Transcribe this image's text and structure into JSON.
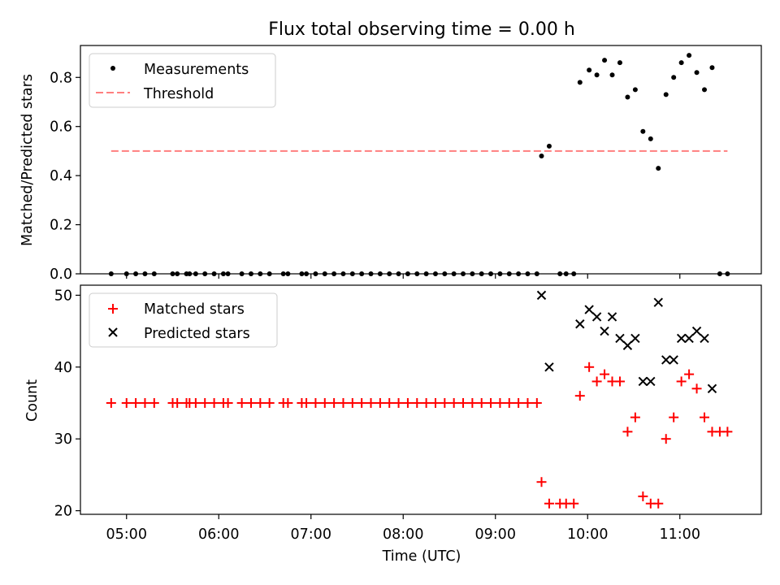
{
  "title": "Flux total observing time = 0.00 h",
  "xlabel": "Time (UTC)",
  "x_ticks": [
    "05:00",
    "06:00",
    "07:00",
    "08:00",
    "09:00",
    "10:00",
    "11:00"
  ],
  "colors": {
    "measurements": "#000000",
    "threshold": "#ff7f7f",
    "matched": "#ff0000",
    "predicted": "#000000"
  },
  "chart_data": [
    {
      "type": "scatter",
      "ylabel": "Matched/Predicted stars",
      "xlim": [
        "04:30",
        "11:53"
      ],
      "ylim": [
        0,
        0.93
      ],
      "y_ticks": [
        "0.0",
        "0.2",
        "0.4",
        "0.6",
        "0.8"
      ],
      "legend": "top-left",
      "series": [
        {
          "name": "Measurements",
          "marker": "dot",
          "points": [
            [
              "04:50",
              0.0
            ],
            [
              "05:00",
              0.0
            ],
            [
              "05:06",
              0.0
            ],
            [
              "05:12",
              0.0
            ],
            [
              "05:18",
              0.0
            ],
            [
              "05:30",
              0.0
            ],
            [
              "05:33",
              0.0
            ],
            [
              "05:39",
              0.0
            ],
            [
              "05:41",
              0.0
            ],
            [
              "05:45",
              0.0
            ],
            [
              "05:51",
              0.0
            ],
            [
              "05:57",
              0.0
            ],
            [
              "06:03",
              0.0
            ],
            [
              "06:06",
              0.0
            ],
            [
              "06:15",
              0.0
            ],
            [
              "06:21",
              0.0
            ],
            [
              "06:27",
              0.0
            ],
            [
              "06:33",
              0.0
            ],
            [
              "06:42",
              0.0
            ],
            [
              "06:45",
              0.0
            ],
            [
              "06:54",
              0.0
            ],
            [
              "06:57",
              0.0
            ],
            [
              "07:03",
              0.0
            ],
            [
              "07:09",
              0.0
            ],
            [
              "07:15",
              0.0
            ],
            [
              "07:21",
              0.0
            ],
            [
              "07:27",
              0.0
            ],
            [
              "07:33",
              0.0
            ],
            [
              "07:39",
              0.0
            ],
            [
              "07:45",
              0.0
            ],
            [
              "07:51",
              0.0
            ],
            [
              "07:57",
              0.0
            ],
            [
              "08:03",
              0.0
            ],
            [
              "08:09",
              0.0
            ],
            [
              "08:15",
              0.0
            ],
            [
              "08:21",
              0.0
            ],
            [
              "08:27",
              0.0
            ],
            [
              "08:33",
              0.0
            ],
            [
              "08:39",
              0.0
            ],
            [
              "08:45",
              0.0
            ],
            [
              "08:51",
              0.0
            ],
            [
              "08:57",
              0.0
            ],
            [
              "09:03",
              0.0
            ],
            [
              "09:09",
              0.0
            ],
            [
              "09:15",
              0.0
            ],
            [
              "09:21",
              0.0
            ],
            [
              "09:27",
              0.0
            ],
            [
              "09:30",
              0.48
            ],
            [
              "09:35",
              0.52
            ],
            [
              "09:42",
              0.0
            ],
            [
              "09:46",
              0.0
            ],
            [
              "09:51",
              0.0
            ],
            [
              "09:55",
              0.78
            ],
            [
              "10:01",
              0.83
            ],
            [
              "10:06",
              0.81
            ],
            [
              "10:11",
              0.87
            ],
            [
              "10:16",
              0.81
            ],
            [
              "10:21",
              0.86
            ],
            [
              "10:26",
              0.72
            ],
            [
              "10:31",
              0.75
            ],
            [
              "10:36",
              0.58
            ],
            [
              "10:41",
              0.55
            ],
            [
              "10:46",
              0.43
            ],
            [
              "10:51",
              0.73
            ],
            [
              "10:56",
              0.8
            ],
            [
              "11:01",
              0.86
            ],
            [
              "11:06",
              0.89
            ],
            [
              "11:11",
              0.82
            ],
            [
              "11:16",
              0.75
            ],
            [
              "11:21",
              0.84
            ],
            [
              "11:26",
              0.0
            ],
            [
              "11:31",
              0.0
            ]
          ]
        },
        {
          "name": "Threshold",
          "marker": "dashed-line",
          "points": [
            [
              "04:50",
              0.5
            ],
            [
              "11:31",
              0.5
            ]
          ]
        }
      ]
    },
    {
      "type": "scatter",
      "ylabel": "Count",
      "xlim": [
        "04:30",
        "11:53"
      ],
      "ylim": [
        19.5,
        51.4
      ],
      "y_ticks": [
        "20",
        "30",
        "40",
        "50"
      ],
      "legend": "top-left",
      "series": [
        {
          "name": "Matched stars",
          "marker": "plus",
          "points": [
            [
              "04:50",
              35
            ],
            [
              "05:00",
              35
            ],
            [
              "05:06",
              35
            ],
            [
              "05:12",
              35
            ],
            [
              "05:18",
              35
            ],
            [
              "05:30",
              35
            ],
            [
              "05:33",
              35
            ],
            [
              "05:39",
              35
            ],
            [
              "05:41",
              35
            ],
            [
              "05:45",
              35
            ],
            [
              "05:51",
              35
            ],
            [
              "05:57",
              35
            ],
            [
              "06:03",
              35
            ],
            [
              "06:06",
              35
            ],
            [
              "06:15",
              35
            ],
            [
              "06:21",
              35
            ],
            [
              "06:27",
              35
            ],
            [
              "06:33",
              35
            ],
            [
              "06:42",
              35
            ],
            [
              "06:45",
              35
            ],
            [
              "06:54",
              35
            ],
            [
              "06:57",
              35
            ],
            [
              "07:03",
              35
            ],
            [
              "07:09",
              35
            ],
            [
              "07:15",
              35
            ],
            [
              "07:21",
              35
            ],
            [
              "07:27",
              35
            ],
            [
              "07:33",
              35
            ],
            [
              "07:39",
              35
            ],
            [
              "07:45",
              35
            ],
            [
              "07:51",
              35
            ],
            [
              "07:57",
              35
            ],
            [
              "08:03",
              35
            ],
            [
              "08:09",
              35
            ],
            [
              "08:15",
              35
            ],
            [
              "08:21",
              35
            ],
            [
              "08:27",
              35
            ],
            [
              "08:33",
              35
            ],
            [
              "08:39",
              35
            ],
            [
              "08:45",
              35
            ],
            [
              "08:51",
              35
            ],
            [
              "08:57",
              35
            ],
            [
              "09:03",
              35
            ],
            [
              "09:09",
              35
            ],
            [
              "09:15",
              35
            ],
            [
              "09:21",
              35
            ],
            [
              "09:27",
              35
            ],
            [
              "09:30",
              24
            ],
            [
              "09:35",
              21
            ],
            [
              "09:42",
              21
            ],
            [
              "09:46",
              21
            ],
            [
              "09:51",
              21
            ],
            [
              "09:55",
              36
            ],
            [
              "10:01",
              40
            ],
            [
              "10:06",
              38
            ],
            [
              "10:11",
              39
            ],
            [
              "10:16",
              38
            ],
            [
              "10:21",
              38
            ],
            [
              "10:26",
              31
            ],
            [
              "10:31",
              33
            ],
            [
              "10:36",
              22
            ],
            [
              "10:41",
              21
            ],
            [
              "10:46",
              21
            ],
            [
              "10:51",
              30
            ],
            [
              "10:56",
              33
            ],
            [
              "11:01",
              38
            ],
            [
              "11:06",
              39
            ],
            [
              "11:11",
              37
            ],
            [
              "11:16",
              33
            ],
            [
              "11:21",
              31
            ],
            [
              "11:26",
              31
            ],
            [
              "11:31",
              31
            ]
          ]
        },
        {
          "name": "Predicted stars",
          "marker": "x",
          "points": [
            [
              "09:30",
              50
            ],
            [
              "09:35",
              40
            ],
            [
              "09:55",
              46
            ],
            [
              "10:01",
              48
            ],
            [
              "10:06",
              47
            ],
            [
              "10:11",
              45
            ],
            [
              "10:16",
              47
            ],
            [
              "10:21",
              44
            ],
            [
              "10:26",
              43
            ],
            [
              "10:31",
              44
            ],
            [
              "10:36",
              38
            ],
            [
              "10:41",
              38
            ],
            [
              "10:46",
              49
            ],
            [
              "10:51",
              41
            ],
            [
              "10:56",
              41
            ],
            [
              "11:01",
              44
            ],
            [
              "11:06",
              44
            ],
            [
              "11:11",
              45
            ],
            [
              "11:16",
              44
            ],
            [
              "11:21",
              37
            ]
          ]
        }
      ]
    }
  ]
}
